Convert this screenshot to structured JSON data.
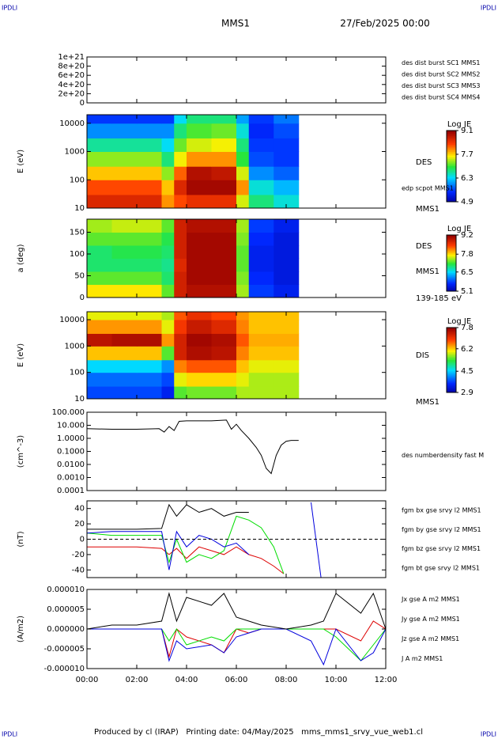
{
  "header": {
    "tag_left": "IPDLI",
    "tag_right": "IPDLI",
    "title": "MMS1",
    "date": "27/Feb/2025 00:00"
  },
  "footer": {
    "text": "Produced by cl (IRAP)   Printing date: 04/May/2025   mms_mms1_srvy_vue_web1.cl",
    "tag_left": "IPDLI",
    "tag_right": "IPDLI"
  },
  "chart_data": [
    {
      "type": "line",
      "xlim": [
        0,
        12
      ],
      "ylim": [
        0,
        1e+21
      ],
      "yticks": [
        0,
        {
          "value": 2e+20,
          "label": "2e+20"
        },
        {
          "value": 4e+20,
          "label": "4e+20"
        },
        {
          "value": 6e+20,
          "label": "6e+20"
        },
        {
          "value": 8e+20,
          "label": "8e+20"
        },
        {
          "value": 1e+21,
          "label": "1e+21"
        }
      ],
      "zero_line": true,
      "series": [
        {
          "name": "des dist burst SC1 MMS1",
          "color": "#0000cc"
        },
        {
          "name": "des dist burst SC2 MMS2",
          "color": "#cc00cc"
        },
        {
          "name": "des dist burst SC3 MMS3",
          "color": "#cc0000"
        },
        {
          "name": "des dist burst SC4 MMS4",
          "color": "#00bb00"
        }
      ]
    },
    {
      "type": "heatmap",
      "ylabel": "E (eV)",
      "log_y": true,
      "xlim": [
        0,
        12
      ],
      "ylim": [
        10,
        20000
      ],
      "yticks": [
        10,
        100,
        1000,
        10000
      ],
      "x": [
        0,
        1,
        2,
        3,
        3.5,
        4,
        5,
        6,
        6.5,
        7.5,
        8.5
      ],
      "y": [
        10,
        30,
        100,
        300,
        1000,
        3000,
        10000,
        20000
      ],
      "z": [
        [
          8.6,
          8.6,
          8.6,
          8.0,
          8.3,
          8.5,
          8.5,
          7.5,
          6.8,
          6.5
        ],
        [
          8.3,
          8.3,
          8.3,
          7.8,
          8.6,
          9.0,
          9.0,
          8.0,
          6.5,
          6.2
        ],
        [
          7.8,
          7.8,
          7.8,
          7.3,
          8.2,
          8.9,
          8.8,
          7.5,
          6.0,
          5.8
        ],
        [
          7.3,
          7.3,
          7.3,
          6.8,
          7.6,
          8.0,
          8.0,
          7.0,
          5.7,
          5.6
        ],
        [
          6.7,
          6.7,
          6.7,
          6.4,
          7.2,
          7.5,
          7.6,
          6.8,
          5.6,
          5.6
        ],
        [
          6.0,
          6.0,
          6.0,
          6.0,
          6.8,
          7.1,
          7.2,
          6.5,
          5.5,
          5.7
        ],
        [
          5.6,
          5.6,
          5.6,
          5.6,
          6.4,
          6.8,
          6.8,
          6.1,
          5.6,
          5.9
        ]
      ],
      "colorbar": {
        "title": "Log JE",
        "lim": [
          4.9,
          9.1
        ],
        "ticks": [
          4.9,
          6.3,
          7.7,
          9.1
        ]
      },
      "annotations": [
        "DES",
        "edp scpot MMS1",
        "MMS1"
      ]
    },
    {
      "type": "heatmap",
      "ylabel": "a (deg)",
      "xlim": [
        0,
        12
      ],
      "ylim": [
        0,
        180
      ],
      "yticks": [
        0,
        50,
        100,
        150
      ],
      "x": [
        0,
        1,
        2,
        3,
        3.5,
        4,
        5,
        6,
        6.5,
        7.5,
        8.5
      ],
      "y": [
        0,
        30,
        60,
        90,
        120,
        150,
        180
      ],
      "z": [
        [
          7.8,
          7.8,
          7.8,
          7.3,
          8.8,
          9.0,
          9.0,
          7.5,
          5.8,
          5.6
        ],
        [
          7.3,
          7.3,
          7.3,
          7.0,
          8.8,
          9.1,
          9.1,
          7.4,
          5.7,
          5.5
        ],
        [
          7.0,
          7.0,
          7.0,
          6.9,
          8.7,
          9.1,
          9.1,
          7.3,
          5.6,
          5.5
        ],
        [
          7.0,
          7.1,
          7.1,
          7.0,
          8.8,
          9.1,
          9.1,
          7.3,
          5.6,
          5.5
        ],
        [
          7.3,
          7.3,
          7.3,
          7.1,
          8.8,
          9.1,
          9.1,
          7.4,
          5.7,
          5.5
        ],
        [
          7.5,
          7.6,
          7.6,
          7.3,
          8.8,
          9.0,
          9.0,
          7.5,
          5.8,
          5.6
        ]
      ],
      "colorbar": {
        "title": "Log JE",
        "lim": [
          5.1,
          9.2
        ],
        "ticks": [
          5.1,
          6.5,
          7.8,
          9.2
        ]
      },
      "annotations": [
        "DES",
        "MMS1",
        "139-185 eV"
      ]
    },
    {
      "type": "heatmap",
      "ylabel": "E (eV)",
      "log_y": true,
      "xlim": [
        0,
        12
      ],
      "ylim": [
        10,
        20000
      ],
      "yticks": [
        10,
        100,
        1000,
        10000
      ],
      "x": [
        0,
        1,
        2,
        3,
        3.5,
        4,
        5,
        6,
        6.5,
        7.5,
        8.5
      ],
      "y": [
        10,
        30,
        100,
        300,
        1000,
        3000,
        10000,
        20000
      ],
      "z": [
        [
          3.8,
          3.8,
          3.8,
          3.5,
          5.5,
          5.6,
          5.6,
          5.8,
          5.8,
          5.8
        ],
        [
          4.0,
          4.0,
          4.0,
          3.8,
          6.0,
          6.2,
          6.2,
          6.0,
          5.8,
          5.8
        ],
        [
          4.6,
          4.6,
          4.6,
          4.2,
          6.6,
          6.8,
          6.8,
          6.3,
          6.0,
          6.0
        ],
        [
          6.3,
          6.3,
          6.3,
          5.5,
          7.3,
          7.6,
          7.5,
          6.6,
          6.3,
          6.3
        ],
        [
          7.5,
          7.6,
          7.6,
          6.5,
          7.3,
          7.7,
          7.6,
          6.8,
          6.4,
          6.4
        ],
        [
          6.5,
          6.5,
          6.5,
          6.0,
          7.0,
          7.4,
          7.2,
          6.6,
          6.3,
          6.3
        ],
        [
          6.0,
          6.0,
          6.0,
          5.8,
          6.8,
          7.1,
          6.9,
          6.5,
          6.3,
          6.3
        ]
      ],
      "colorbar": {
        "title": "Log JE",
        "lim": [
          2.9,
          7.8
        ],
        "ticks": [
          2.9,
          4.5,
          6.2,
          7.8
        ]
      },
      "annotations": [
        "DIS",
        "MMS1"
      ]
    },
    {
      "type": "line",
      "ylabel": "(cm^-3)",
      "log_y": true,
      "xlim": [
        0,
        12
      ],
      "ylim": [
        0.0001,
        100
      ],
      "yticks": [
        {
          "value": 100,
          "label": "100.000"
        },
        {
          "value": 10,
          "label": "10.000"
        },
        {
          "value": 1,
          "label": "1.0000"
        },
        {
          "value": 0.1,
          "label": "0.1000"
        },
        {
          "value": 0.01,
          "label": "0.0100"
        },
        {
          "value": 0.001,
          "label": "0.0010"
        },
        {
          "value": 0.0001,
          "label": "0.0001"
        }
      ],
      "x": [
        0,
        1,
        2,
        2.9,
        3.1,
        3.3,
        3.5,
        3.7,
        4,
        5,
        5.6,
        5.8,
        6.0,
        6.2,
        6.5,
        6.8,
        7.0,
        7.2,
        7.4,
        7.6,
        7.8,
        8.0,
        8.2,
        8.5
      ],
      "series": [
        {
          "name": "des numberdensity fast M",
          "color": "#000000",
          "values": [
            5.5,
            5,
            5,
            5.5,
            3,
            8,
            4,
            20,
            22,
            22,
            25,
            5,
            12,
            4,
            1,
            0.2,
            0.05,
            0.005,
            0.002,
            0.05,
            0.3,
            0.6,
            0.7,
            0.7
          ]
        }
      ]
    },
    {
      "type": "line",
      "ylabel": "(nT)",
      "xlim": [
        0,
        12
      ],
      "ylim": [
        -50,
        50
      ],
      "yticks": [
        -40,
        -20,
        0,
        20,
        40
      ],
      "zero_line": true,
      "x": [
        0,
        1,
        2,
        3,
        3.3,
        3.6,
        4,
        4.5,
        5,
        5.5,
        6,
        6.5,
        7,
        7.5,
        7.9,
        9,
        9.4
      ],
      "series": [
        {
          "name": "fgm bx gse srvy l2 MMS1",
          "color": "#dd0000",
          "values": [
            -10,
            -10,
            -10,
            -12,
            -20,
            -12,
            -25,
            -10,
            -15,
            -20,
            -10,
            -20,
            -25,
            -35,
            -45,
            null,
            null
          ]
        },
        {
          "name": "fgm by gse srvy l2 MMS1",
          "color": "#00dd00",
          "values": [
            8,
            5,
            5,
            5,
            -30,
            0,
            -30,
            -20,
            -25,
            -15,
            30,
            25,
            15,
            -10,
            -45,
            null,
            null
          ]
        },
        {
          "name": "fgm bz gse srvy l2 MMS1",
          "color": "#0000dd",
          "values": [
            8,
            10,
            10,
            10,
            -40,
            10,
            -10,
            5,
            0,
            -10,
            -5,
            -20,
            null,
            null,
            null,
            48,
            -50
          ]
        },
        {
          "name": "fgm bt gse srvy l2 MMS1",
          "color": "#000000",
          "values": [
            13,
            13,
            13,
            14,
            45,
            30,
            45,
            35,
            40,
            30,
            35,
            35,
            null,
            null,
            null,
            null,
            null
          ]
        }
      ]
    },
    {
      "type": "line",
      "ylabel": "(A/m2)",
      "xlim": [
        0,
        12
      ],
      "ylim": [
        -1e-05,
        1e-05
      ],
      "yticks": [
        {
          "value": 1e-05,
          "label": "0.000010"
        },
        {
          "value": 5e-06,
          "label": "0.000005"
        },
        {
          "value": 0,
          "label": "0.000000"
        },
        {
          "value": -5e-06,
          "label": "-0.000005"
        },
        {
          "value": -1e-05,
          "label": "-0.000010"
        }
      ],
      "xticks": [
        {
          "value": 0,
          "label": "00:00"
        },
        {
          "value": 2,
          "label": "02:00"
        },
        {
          "value": 4,
          "label": "04:00"
        },
        {
          "value": 6,
          "label": "06:00"
        },
        {
          "value": 8,
          "label": "08:00"
        },
        {
          "value": 10,
          "label": "10:00"
        },
        {
          "value": 12,
          "label": "12:00"
        }
      ],
      "x": [
        0,
        1,
        2,
        3,
        3.3,
        3.6,
        4,
        5,
        5.5,
        6,
        6.5,
        7,
        8,
        9,
        9.5,
        10,
        11,
        11.5,
        12
      ],
      "series": [
        {
          "name": "Jx gse A m2 MMS1",
          "color": "#dd0000",
          "values": [
            0,
            0,
            0,
            0,
            -7e-06,
            0,
            -2e-06,
            -4e-06,
            -6e-06,
            0,
            -1e-06,
            0,
            0,
            0,
            0,
            0,
            -3e-06,
            2e-06,
            0
          ]
        },
        {
          "name": "Jy gse A m2 MMS1",
          "color": "#00dd00",
          "values": [
            0,
            0,
            0,
            0,
            -3e-06,
            0,
            -4e-06,
            -2e-06,
            -3e-06,
            0,
            0,
            0,
            0,
            0,
            0,
            -2e-06,
            -8e-06,
            -4e-06,
            0
          ]
        },
        {
          "name": "Jz gse A m2 MMS1",
          "color": "#0000dd",
          "values": [
            0,
            0,
            0,
            0,
            -8e-06,
            -3e-06,
            -5e-06,
            -4e-06,
            -6e-06,
            -2e-06,
            -1e-06,
            0,
            0,
            -3e-06,
            -9e-06,
            0,
            -8e-06,
            -6e-06,
            0
          ]
        },
        {
          "name": "J A m2 MMS1",
          "color": "#000000",
          "values": [
            0,
            1e-06,
            1e-06,
            2e-06,
            9e-06,
            2e-06,
            8e-06,
            6e-06,
            9e-06,
            3e-06,
            2e-06,
            1e-06,
            0,
            1e-06,
            2e-06,
            9e-06,
            4e-06,
            9e-06,
            0
          ]
        }
      ]
    }
  ]
}
